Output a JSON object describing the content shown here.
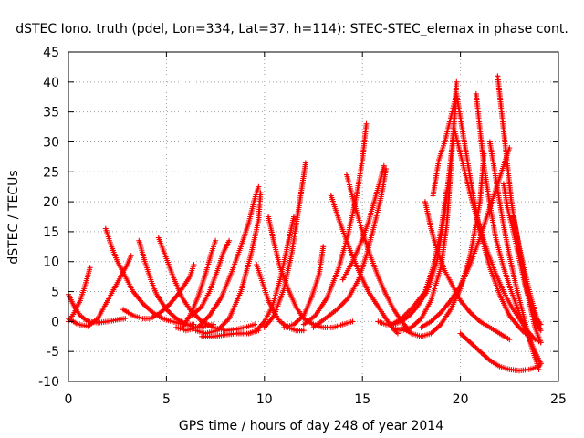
{
  "chart_data": {
    "type": "scatter",
    "title": "dSTEC Iono. truth (pdel, Lon=334, Lat=37, h=114): STEC-STEC_elemax in phase cont.",
    "xlabel": "GPS time / hours of day 248 of year 2014",
    "ylabel": "dSTEC  / TECUs",
    "xlim": [
      0,
      25
    ],
    "ylim": [
      -10,
      45
    ],
    "xticks": [
      0,
      5,
      10,
      15,
      20,
      25
    ],
    "yticks": [
      -10,
      -5,
      0,
      5,
      10,
      15,
      20,
      25,
      30,
      35,
      40,
      45
    ],
    "grid": true,
    "marker": "plus",
    "color": "#ff0000",
    "series": [
      {
        "x": [
          0.0,
          0.3,
          0.6,
          0.8,
          1.0,
          1.1
        ],
        "y": [
          0.0,
          1.5,
          3.5,
          5.5,
          7.8,
          9.0
        ]
      },
      {
        "x": [
          0.0,
          0.3,
          0.6,
          1.0,
          1.5,
          2.0,
          2.5,
          2.9
        ],
        "y": [
          4.5,
          2.5,
          1.0,
          0.0,
          -0.2,
          0.0,
          0.3,
          0.5
        ]
      },
      {
        "x": [
          0.0,
          0.5,
          1.0,
          1.5,
          2.0,
          2.5,
          3.0,
          3.2
        ],
        "y": [
          0.5,
          -0.5,
          -0.8,
          0.5,
          3.5,
          6.5,
          9.5,
          11.0
        ]
      },
      {
        "x": [
          1.9,
          2.2,
          2.5,
          2.9,
          3.3,
          3.8,
          4.3,
          4.8,
          5.3,
          5.9,
          6.4
        ],
        "y": [
          15.5,
          12.5,
          10.0,
          7.5,
          5.0,
          3.0,
          1.5,
          0.5,
          0.0,
          -0.5,
          -0.5
        ]
      },
      {
        "x": [
          2.8,
          3.3,
          3.8,
          4.2,
          4.7,
          5.2,
          5.7,
          6.2,
          6.4
        ],
        "y": [
          2.0,
          1.0,
          0.5,
          0.5,
          1.5,
          3.0,
          5.0,
          7.5,
          9.5
        ]
      },
      {
        "x": [
          3.6,
          3.9,
          4.2,
          4.5,
          5.0,
          5.5,
          6.0,
          6.5,
          7.0,
          7.4
        ],
        "y": [
          13.5,
          10.0,
          7.0,
          4.5,
          2.0,
          0.5,
          -0.5,
          -1.0,
          -0.8,
          -0.5
        ]
      },
      {
        "x": [
          4.6,
          5.0,
          5.4,
          5.8,
          6.2,
          6.8,
          7.4,
          8.0,
          8.6,
          9.2,
          9.5
        ],
        "y": [
          14.0,
          10.5,
          7.0,
          4.0,
          2.0,
          0.0,
          -1.0,
          -1.5,
          -1.3,
          -0.8,
          -0.5
        ]
      },
      {
        "x": [
          5.8,
          6.2,
          6.6,
          7.0,
          7.3,
          7.5
        ],
        "y": [
          -1.0,
          1.0,
          4.0,
          8.0,
          11.5,
          13.5
        ]
      },
      {
        "x": [
          6.3,
          6.8,
          7.2,
          7.6,
          7.9,
          8.2
        ],
        "y": [
          1.0,
          2.5,
          5.0,
          8.5,
          11.5,
          13.5
        ]
      },
      {
        "x": [
          5.5,
          6.0,
          6.6,
          7.2,
          7.8,
          8.3,
          8.8,
          9.2,
          9.5,
          9.7
        ],
        "y": [
          -1.0,
          -1.5,
          -1.0,
          1.0,
          4.0,
          8.0,
          12.5,
          16.5,
          20.5,
          22.5
        ]
      },
      {
        "x": [
          6.5,
          7.0,
          7.6,
          8.2,
          8.8,
          9.3,
          9.7,
          9.8
        ],
        "y": [
          -1.5,
          -2.0,
          -1.5,
          0.5,
          5.0,
          11.0,
          17.0,
          21.5
        ]
      },
      {
        "x": [
          6.8,
          7.4,
          8.0,
          8.6,
          9.2,
          9.7
        ],
        "y": [
          -2.5,
          -2.5,
          -2.2,
          -2.0,
          -2.0,
          -1.5
        ]
      },
      {
        "x": [
          9.6,
          9.9,
          10.2,
          10.5,
          10.8,
          11.2,
          11.6,
          12.0
        ],
        "y": [
          9.5,
          6.5,
          3.5,
          1.5,
          0.0,
          -1.0,
          -1.5,
          -1.5
        ]
      },
      {
        "x": [
          9.2,
          9.6,
          10.0,
          10.4,
          10.8,
          11.2,
          11.5
        ],
        "y": [
          -2.0,
          -1.5,
          0.0,
          2.5,
          7.0,
          13.0,
          17.5
        ]
      },
      {
        "x": [
          10.2,
          10.5,
          10.8,
          11.2,
          11.6,
          12.0,
          12.5,
          13.0,
          13.5,
          14.0,
          14.5
        ],
        "y": [
          17.5,
          13.0,
          9.0,
          5.5,
          2.5,
          0.5,
          -0.5,
          -1.0,
          -1.0,
          -0.5,
          0.0
        ]
      },
      {
        "x": [
          10.0,
          10.5,
          11.0,
          11.4,
          11.8,
          12.1
        ],
        "y": [
          -1.0,
          1.0,
          5.5,
          11.5,
          20.0,
          26.5
        ]
      },
      {
        "x": [
          11.0,
          11.5,
          12.0,
          12.4,
          12.8,
          13.0
        ],
        "y": [
          -1.0,
          -0.5,
          1.0,
          4.0,
          8.0,
          12.5
        ]
      },
      {
        "x": [
          13.4,
          13.8,
          14.3,
          14.8,
          15.3,
          15.8,
          16.2,
          16.5,
          16.8
        ],
        "y": [
          21.0,
          17.0,
          12.5,
          8.5,
          5.0,
          2.5,
          0.5,
          -1.0,
          -2.0
        ]
      },
      {
        "x": [
          14.2,
          14.6,
          15.0,
          15.4,
          15.8,
          16.2,
          16.6,
          17.0,
          17.4
        ],
        "y": [
          24.5,
          19.5,
          15.0,
          11.0,
          7.5,
          4.5,
          2.0,
          0.0,
          -1.5
        ]
      },
      {
        "x": [
          12.0,
          12.6,
          13.2,
          13.8,
          14.3,
          14.7,
          15.0,
          15.2
        ],
        "y": [
          -0.5,
          1.0,
          4.0,
          9.0,
          15.0,
          21.0,
          27.0,
          33.0
        ]
      },
      {
        "x": [
          12.5,
          13.1,
          13.7,
          14.3,
          14.8,
          15.2,
          15.6,
          16.0,
          16.2
        ],
        "y": [
          -1.0,
          0.5,
          2.0,
          4.0,
          7.0,
          11.0,
          16.0,
          21.5,
          25.5
        ]
      },
      {
        "x": [
          14.0,
          14.5,
          14.9,
          15.3,
          15.6,
          15.9,
          16.1
        ],
        "y": [
          7.0,
          10.0,
          13.0,
          16.5,
          20.0,
          23.5,
          26.0
        ]
      },
      {
        "x": [
          15.8,
          16.2,
          16.6,
          17.0,
          17.4,
          17.8,
          18.3,
          18.8,
          19.2,
          19.6,
          19.8
        ],
        "y": [
          0.0,
          -0.5,
          -0.5,
          0.0,
          1.0,
          2.5,
          5.0,
          10.0,
          18.0,
          30.0,
          38.0
        ]
      },
      {
        "x": [
          16.5,
          17.0,
          17.5,
          18.0,
          18.5,
          19.0,
          19.3,
          19.5,
          19.8
        ],
        "y": [
          -1.0,
          -1.5,
          -1.0,
          0.5,
          3.5,
          9.0,
          16.0,
          25.0,
          40.0
        ]
      },
      {
        "x": [
          16.5,
          17.0,
          17.6,
          18.2,
          18.6,
          19.0,
          19.3
        ],
        "y": [
          -0.5,
          0.5,
          2.5,
          5.0,
          9.0,
          15.0,
          22.0
        ]
      },
      {
        "x": [
          17.0,
          17.5,
          18.0,
          18.5,
          19.0,
          19.5,
          20.0,
          20.5,
          21.0,
          21.2
        ],
        "y": [
          -1.0,
          -2.0,
          -2.5,
          -2.0,
          -0.5,
          2.0,
          5.5,
          11.0,
          20.0,
          28.0
        ]
      },
      {
        "x": [
          18.2,
          18.5,
          18.8,
          19.2,
          19.6,
          20.0,
          20.5,
          21.0,
          21.5,
          22.0,
          22.5
        ],
        "y": [
          20.0,
          15.5,
          12.0,
          8.5,
          6.0,
          3.5,
          1.5,
          0.0,
          -1.0,
          -2.0,
          -3.0
        ]
      },
      {
        "x": [
          18.6,
          18.9,
          19.2,
          19.5,
          19.8,
          20.2,
          20.6,
          21.0,
          21.5,
          22.0,
          22.5,
          23.0,
          23.3
        ],
        "y": [
          21.0,
          27.0,
          30.0,
          34.0,
          38.0,
          30.0,
          22.0,
          15.0,
          9.0,
          4.5,
          1.0,
          -1.0,
          -2.0
        ]
      },
      {
        "x": [
          19.7,
          20.0,
          20.3,
          20.6,
          21.0,
          21.4,
          21.8,
          22.2,
          22.6,
          23.0,
          23.4,
          23.8,
          24.1
        ],
        "y": [
          32.0,
          28.0,
          24.0,
          20.0,
          15.5,
          11.5,
          8.0,
          5.0,
          2.5,
          0.5,
          -1.5,
          -3.0,
          -3.5
        ]
      },
      {
        "x": [
          20.8,
          21.0,
          21.2,
          21.5,
          21.8,
          22.2,
          22.6,
          23.0,
          23.4,
          23.8,
          24.1
        ],
        "y": [
          38.0,
          32.0,
          26.0,
          19.5,
          14.0,
          9.0,
          5.0,
          1.5,
          -2.0,
          -5.0,
          -7.0
        ]
      },
      {
        "x": [
          21.5,
          21.9,
          22.2,
          22.5,
          22.8,
          23.1,
          23.4,
          23.7,
          24.0
        ],
        "y": [
          30.0,
          22.0,
          16.0,
          11.0,
          6.5,
          2.5,
          -1.5,
          -5.0,
          -8.0
        ]
      },
      {
        "x": [
          21.9,
          22.0,
          22.2,
          22.4,
          22.6,
          22.9,
          23.2,
          23.5,
          23.8,
          24.1
        ],
        "y": [
          41.0,
          38.0,
          32.0,
          26.0,
          20.0,
          14.0,
          8.5,
          3.5,
          -1.0,
          -3.5
        ]
      },
      {
        "x": [
          22.2,
          22.4,
          22.7,
          23.0,
          23.3,
          23.6,
          23.9,
          24.1
        ],
        "y": [
          23.0,
          19.0,
          15.0,
          10.5,
          6.0,
          2.5,
          -0.5,
          -1.5
        ]
      },
      {
        "x": [
          22.7,
          23.0,
          23.3,
          23.6,
          23.9,
          24.1
        ],
        "y": [
          17.5,
          12.5,
          8.0,
          4.0,
          0.5,
          -0.5
        ]
      },
      {
        "x": [
          20.0,
          20.5,
          21.0,
          21.5,
          22.0,
          22.5,
          23.0,
          23.5,
          24.0,
          24.1
        ],
        "y": [
          -2.0,
          -3.5,
          -5.0,
          -6.5,
          -7.5,
          -8.0,
          -8.2,
          -8.0,
          -7.5,
          -7.0
        ]
      },
      {
        "x": [
          18.0,
          18.5,
          19.0,
          19.5,
          20.0,
          20.5,
          21.0,
          21.5,
          22.0,
          22.5
        ],
        "y": [
          -1.0,
          0.0,
          1.5,
          3.5,
          6.0,
          9.5,
          14.0,
          19.0,
          24.0,
          29.0
        ]
      }
    ]
  }
}
